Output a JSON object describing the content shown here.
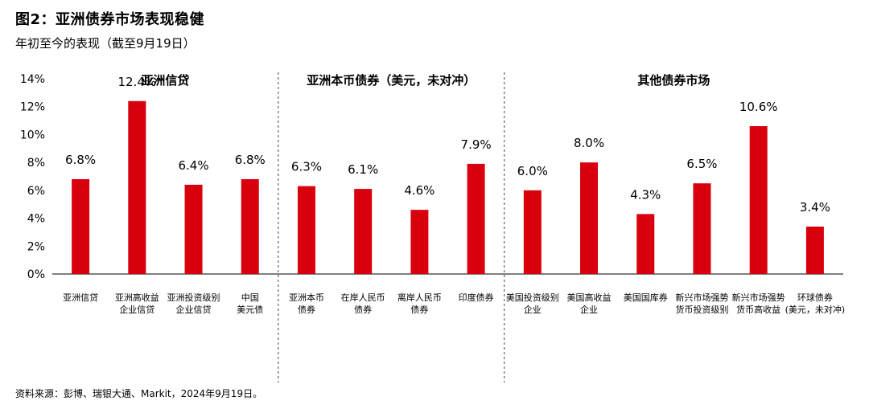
{
  "title": "图2：亚洲债券市场表现稳健",
  "subtitle": "年初至今的表现（截至9月19日）",
  "source": "资料来源：彭博、瑞银大通、Markit，2024年9月19日。",
  "colors": {
    "bar": "#d9000d",
    "axis": "#000000",
    "divider": "#444444"
  },
  "chart_data": {
    "type": "bar",
    "title": "图2：亚洲债券市场表现稳健",
    "subtitle": "年初至今的表现（截至9月19日）",
    "ylim": [
      0,
      14
    ],
    "yticks": [
      0,
      2,
      4,
      6,
      8,
      10,
      12,
      14
    ],
    "ytick_labels": [
      "0%",
      "2%",
      "4%",
      "6%",
      "8%",
      "10%",
      "12%",
      "14%"
    ],
    "grid": false,
    "groups": [
      {
        "label": "亚洲信贷",
        "count": 4
      },
      {
        "label": "亚洲本币债券（美元，未对冲）",
        "count": 4
      },
      {
        "label": "其他债券市场",
        "count": 6
      }
    ],
    "categories": [
      [
        "亚洲信贷"
      ],
      [
        "亚洲高收益",
        "企业信贷"
      ],
      [
        "亚洲投资级别",
        "企业信贷"
      ],
      [
        "中国",
        "美元债"
      ],
      [
        "亚洲本币",
        "债券"
      ],
      [
        "在岸人民币",
        "债券"
      ],
      [
        "离岸人民币",
        "债券"
      ],
      [
        "印度债券"
      ],
      [
        "美国投资级别",
        "企业"
      ],
      [
        "美国高收益",
        "企业"
      ],
      [
        "美国国库券"
      ],
      [
        "新兴市场强势",
        "货币投资级别"
      ],
      [
        "新兴市场强势",
        "货币高收益"
      ],
      [
        "环球债券",
        "(美元，未对冲)"
      ]
    ],
    "values": [
      6.8,
      12.4,
      6.4,
      6.8,
      6.3,
      6.1,
      4.6,
      7.9,
      6.0,
      8.0,
      4.3,
      6.5,
      10.6,
      3.4
    ],
    "value_labels": [
      "6.8%",
      "12.4%",
      "6.4%",
      "6.8%",
      "6.3%",
      "6.1%",
      "4.6%",
      "7.9%",
      "6.0%",
      "8.0%",
      "4.3%",
      "6.5%",
      "10.6%",
      "3.4%"
    ]
  }
}
